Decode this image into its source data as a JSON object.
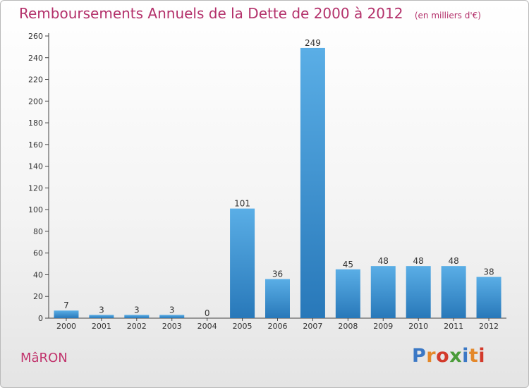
{
  "header": {
    "title": "Remboursements Annuels de la Dette de 2000 à 2012",
    "unit": "(en milliers d'€)"
  },
  "footer": {
    "commune": "MâRON",
    "logo": "Proxiti"
  },
  "colors": {
    "bar_top": "#5aaee6",
    "bar_bottom": "#2878b9",
    "title": "#b3306a",
    "logo_letters": [
      "#3b78c5",
      "#e4882a",
      "#d33a2b",
      "#4b9c3a",
      "#3b78c5",
      "#e4882a",
      "#d33a2b"
    ]
  },
  "chart_data": {
    "type": "bar",
    "title": "Remboursements Annuels de la Dette de 2000 à 2012",
    "subtitle": "(en milliers d'€)",
    "xlabel": "",
    "ylabel": "",
    "categories": [
      "2000",
      "2001",
      "2002",
      "2003",
      "2004",
      "2005",
      "2006",
      "2007",
      "2008",
      "2009",
      "2010",
      "2011",
      "2012"
    ],
    "values": [
      7,
      3,
      3,
      3,
      0,
      101,
      36,
      249,
      45,
      48,
      48,
      48,
      38
    ],
    "ylim": [
      0,
      260
    ],
    "yticks": [
      0,
      20,
      40,
      60,
      80,
      100,
      120,
      140,
      160,
      180,
      200,
      220,
      240,
      260
    ],
    "grid": false,
    "legend": "none"
  }
}
